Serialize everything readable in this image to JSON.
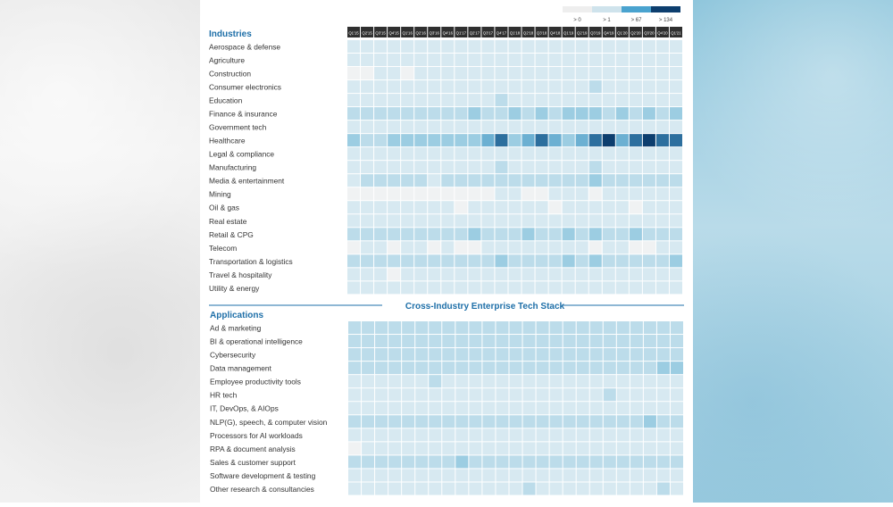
{
  "chart_data": {
    "type": "heatmap",
    "legend": [
      "> 0",
      "> 1",
      "> 67",
      "> 134"
    ],
    "legend_colors": [
      "#eeeeee",
      "#cfe3ec",
      "#4aa3cf",
      "#0d3e6e"
    ],
    "cell_colors": [
      "#f0f2f3",
      "#d7e9f1",
      "#bcdcea",
      "#9ccde2",
      "#6cb0d2",
      "#2d6f9e",
      "#0d3e6e"
    ],
    "periods": [
      "Q1'15",
      "Q2'15",
      "Q3'15",
      "Q4'15",
      "Q1'16",
      "Q2'16",
      "Q3'16",
      "Q4'16",
      "Q1'17",
      "Q2'17",
      "Q3'17",
      "Q4'17",
      "Q1'18",
      "Q2'18",
      "Q3'18",
      "Q4'18",
      "Q1'19",
      "Q2'19",
      "Q3'19",
      "Q4'19",
      "Q1'20",
      "Q2'20",
      "Q3'20",
      "Q4'20",
      "Q1'21"
    ],
    "sections": [
      {
        "title": "Industries",
        "rows": [
          {
            "label": "Aerospace & defense",
            "values": [
              1,
              1,
              1,
              1,
              1,
              1,
              1,
              1,
              1,
              1,
              1,
              1,
              1,
              1,
              1,
              1,
              1,
              1,
              1,
              1,
              1,
              1,
              1,
              1,
              1
            ]
          },
          {
            "label": "Agriculture",
            "values": [
              1,
              1,
              1,
              1,
              1,
              1,
              1,
              1,
              1,
              1,
              1,
              1,
              1,
              1,
              1,
              1,
              1,
              1,
              1,
              1,
              1,
              1,
              1,
              1,
              1
            ]
          },
          {
            "label": "Construction",
            "values": [
              0,
              0,
              1,
              1,
              0,
              1,
              1,
              1,
              1,
              1,
              1,
              1,
              1,
              1,
              1,
              1,
              1,
              1,
              1,
              1,
              1,
              1,
              1,
              1,
              1
            ]
          },
          {
            "label": "Consumer electronics",
            "values": [
              1,
              1,
              1,
              1,
              1,
              1,
              1,
              1,
              1,
              1,
              1,
              1,
              1,
              1,
              1,
              1,
              1,
              1,
              2,
              1,
              1,
              1,
              1,
              1,
              1
            ]
          },
          {
            "label": "Education",
            "values": [
              1,
              1,
              1,
              1,
              1,
              1,
              1,
              1,
              1,
              1,
              1,
              2,
              1,
              1,
              1,
              1,
              1,
              1,
              1,
              1,
              1,
              1,
              1,
              1,
              1
            ]
          },
          {
            "label": "Finance & insurance",
            "values": [
              2,
              2,
              2,
              2,
              2,
              2,
              2,
              2,
              2,
              3,
              2,
              2,
              3,
              2,
              3,
              2,
              3,
              3,
              3,
              2,
              3,
              2,
              3,
              2,
              3
            ]
          },
          {
            "label": "Government tech",
            "values": [
              1,
              1,
              1,
              1,
              1,
              1,
              1,
              1,
              1,
              1,
              1,
              1,
              1,
              1,
              1,
              1,
              1,
              1,
              1,
              1,
              1,
              1,
              1,
              1,
              1
            ]
          },
          {
            "label": "Healthcare",
            "values": [
              3,
              2,
              2,
              3,
              3,
              3,
              3,
              3,
              3,
              3,
              4,
              5,
              3,
              4,
              5,
              4,
              3,
              4,
              5,
              6,
              4,
              5,
              6,
              5,
              5
            ]
          },
          {
            "label": "Legal & compliance",
            "values": [
              1,
              1,
              1,
              1,
              1,
              1,
              1,
              1,
              1,
              1,
              1,
              1,
              1,
              1,
              1,
              1,
              1,
              1,
              1,
              1,
              1,
              1,
              1,
              1,
              1
            ]
          },
          {
            "label": "Manufacturing",
            "values": [
              1,
              1,
              1,
              1,
              1,
              1,
              1,
              1,
              1,
              1,
              1,
              2,
              1,
              1,
              1,
              1,
              1,
              1,
              2,
              1,
              1,
              1,
              1,
              1,
              1
            ]
          },
          {
            "label": "Media & entertainment",
            "values": [
              1,
              2,
              2,
              2,
              2,
              2,
              1,
              2,
              2,
              2,
              2,
              2,
              2,
              2,
              2,
              2,
              2,
              2,
              3,
              2,
              2,
              2,
              2,
              2,
              2
            ]
          },
          {
            "label": "Mining",
            "values": [
              0,
              0,
              0,
              0,
              0,
              0,
              0,
              0,
              0,
              0,
              0,
              1,
              1,
              0,
              0,
              1,
              1,
              1,
              0,
              1,
              1,
              1,
              1,
              1,
              1
            ]
          },
          {
            "label": "Oil & gas",
            "values": [
              1,
              1,
              1,
              1,
              1,
              1,
              1,
              1,
              0,
              1,
              1,
              1,
              1,
              1,
              1,
              0,
              1,
              1,
              1,
              1,
              1,
              0,
              1,
              1,
              1
            ]
          },
          {
            "label": "Real estate",
            "values": [
              1,
              1,
              1,
              1,
              1,
              1,
              1,
              1,
              1,
              1,
              1,
              1,
              1,
              1,
              1,
              1,
              1,
              1,
              1,
              1,
              1,
              1,
              1,
              1,
              1
            ]
          },
          {
            "label": "Retail & CPG",
            "values": [
              2,
              2,
              2,
              2,
              2,
              2,
              2,
              2,
              2,
              3,
              2,
              2,
              2,
              3,
              2,
              2,
              3,
              2,
              3,
              2,
              2,
              3,
              2,
              2,
              2
            ]
          },
          {
            "label": "Telecom",
            "values": [
              0,
              1,
              1,
              0,
              1,
              1,
              0,
              1,
              0,
              0,
              1,
              1,
              1,
              1,
              1,
              1,
              1,
              1,
              0,
              1,
              1,
              0,
              0,
              1,
              1
            ]
          },
          {
            "label": "Transportation & logistics",
            "values": [
              2,
              2,
              2,
              2,
              2,
              2,
              2,
              2,
              2,
              2,
              2,
              3,
              2,
              2,
              2,
              2,
              3,
              2,
              3,
              2,
              2,
              2,
              2,
              2,
              3
            ]
          },
          {
            "label": "Travel & hospitality",
            "values": [
              1,
              1,
              1,
              0,
              1,
              1,
              1,
              1,
              1,
              1,
              1,
              1,
              1,
              1,
              1,
              1,
              1,
              1,
              1,
              1,
              1,
              1,
              1,
              1,
              1
            ]
          },
          {
            "label": "Utility & energy",
            "values": [
              1,
              1,
              1,
              1,
              1,
              1,
              1,
              1,
              1,
              1,
              1,
              1,
              1,
              1,
              1,
              1,
              1,
              1,
              1,
              1,
              1,
              1,
              1,
              1,
              1
            ]
          }
        ]
      },
      {
        "title": "Applications",
        "rows": [
          {
            "label": "Ad & marketing",
            "values": [
              2,
              2,
              2,
              2,
              2,
              2,
              2,
              2,
              2,
              2,
              2,
              2,
              2,
              2,
              2,
              2,
              2,
              2,
              2,
              2,
              2,
              2,
              2,
              2,
              2
            ]
          },
          {
            "label": "BI & operational intelligence",
            "values": [
              2,
              2,
              2,
              2,
              2,
              2,
              2,
              2,
              2,
              2,
              2,
              2,
              2,
              2,
              2,
              2,
              2,
              2,
              2,
              2,
              2,
              2,
              2,
              2,
              2
            ]
          },
          {
            "label": "Cybersecurity",
            "values": [
              2,
              2,
              2,
              2,
              2,
              2,
              2,
              2,
              2,
              2,
              2,
              2,
              2,
              2,
              2,
              2,
              2,
              2,
              2,
              2,
              2,
              2,
              2,
              2,
              2
            ]
          },
          {
            "label": "Data management",
            "values": [
              2,
              2,
              2,
              2,
              2,
              2,
              2,
              2,
              2,
              2,
              2,
              2,
              2,
              2,
              2,
              2,
              2,
              2,
              2,
              2,
              2,
              2,
              2,
              3,
              3
            ]
          },
          {
            "label": "Employee productivity tools",
            "values": [
              1,
              1,
              1,
              1,
              1,
              1,
              2,
              1,
              1,
              1,
              1,
              1,
              1,
              1,
              1,
              1,
              1,
              1,
              1,
              1,
              1,
              1,
              1,
              1,
              1
            ]
          },
          {
            "label": "HR tech",
            "values": [
              1,
              1,
              1,
              1,
              1,
              1,
              1,
              1,
              1,
              1,
              1,
              1,
              1,
              1,
              1,
              1,
              1,
              1,
              1,
              2,
              1,
              1,
              1,
              1,
              1
            ]
          },
          {
            "label": "IT, DevOps, & AIOps",
            "values": [
              1,
              1,
              1,
              1,
              1,
              1,
              1,
              1,
              1,
              1,
              1,
              1,
              1,
              1,
              1,
              1,
              1,
              1,
              1,
              1,
              1,
              1,
              1,
              1,
              1
            ]
          },
          {
            "label": "NLP(G), speech, & computer vision",
            "values": [
              2,
              2,
              2,
              2,
              2,
              2,
              2,
              2,
              2,
              2,
              2,
              2,
              2,
              2,
              2,
              2,
              2,
              2,
              2,
              2,
              2,
              2,
              3,
              2,
              2
            ]
          },
          {
            "label": "Processors for AI workloads",
            "values": [
              1,
              1,
              1,
              1,
              1,
              1,
              1,
              1,
              1,
              1,
              1,
              1,
              1,
              1,
              1,
              1,
              1,
              1,
              1,
              1,
              1,
              1,
              1,
              1,
              1
            ]
          },
          {
            "label": "RPA &  document analysis",
            "values": [
              0,
              1,
              1,
              1,
              1,
              1,
              1,
              1,
              1,
              1,
              1,
              1,
              1,
              1,
              1,
              1,
              1,
              1,
              1,
              1,
              1,
              1,
              1,
              1,
              1
            ]
          },
          {
            "label": "Sales & customer support",
            "values": [
              2,
              2,
              2,
              2,
              2,
              2,
              2,
              2,
              3,
              2,
              2,
              2,
              2,
              2,
              2,
              2,
              2,
              2,
              2,
              2,
              2,
              2,
              2,
              2,
              2
            ]
          },
          {
            "label": "Software development & testing",
            "values": [
              1,
              1,
              1,
              1,
              1,
              1,
              1,
              1,
              1,
              1,
              1,
              1,
              1,
              1,
              1,
              1,
              1,
              1,
              1,
              1,
              1,
              1,
              1,
              1,
              1
            ]
          },
          {
            "label": "Other research & consultancies",
            "values": [
              1,
              1,
              1,
              1,
              1,
              1,
              1,
              1,
              1,
              1,
              1,
              1,
              1,
              2,
              1,
              1,
              1,
              1,
              1,
              1,
              1,
              1,
              1,
              2,
              1
            ]
          }
        ]
      }
    ],
    "divider_title": "Cross-Industry Enterprise Tech Stack"
  }
}
